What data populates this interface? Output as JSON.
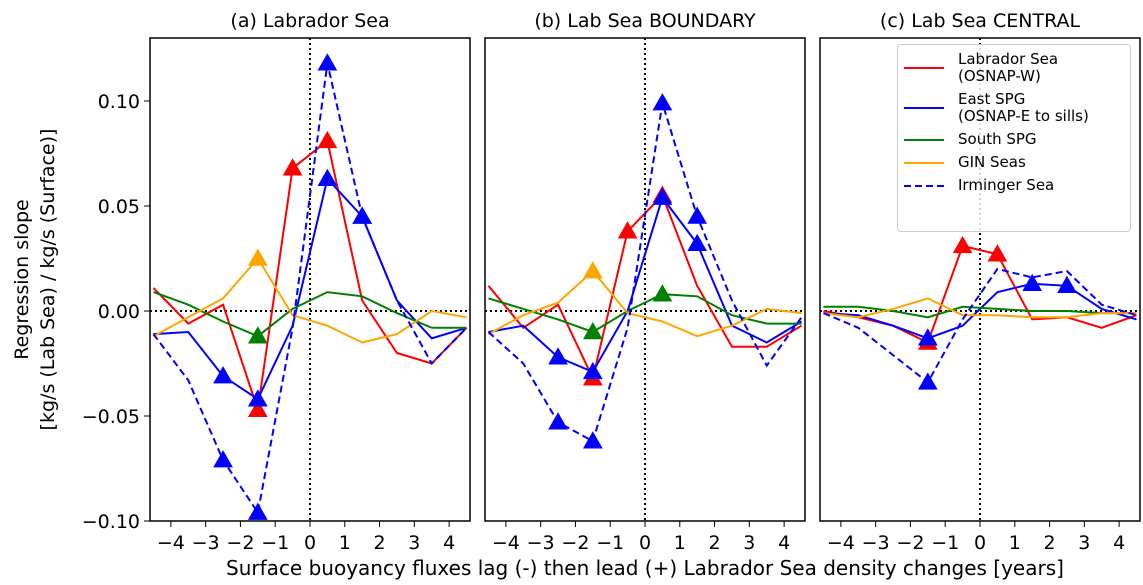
{
  "chart_data": [
    {
      "type": "line",
      "title": "(a) Labrador Sea",
      "ylabel": [
        "Regression slope",
        "[kg/s (Lab Sea) / kg/s (Surface)]"
      ],
      "x": [
        -4.5,
        -3.5,
        -2.5,
        -1.5,
        -0.5,
        0.5,
        1.5,
        2.5,
        3.5,
        4.5
      ],
      "xlim": [
        -4.6,
        4.6
      ],
      "ylim": [
        -0.1,
        0.13
      ],
      "xticks": [
        {
          "value": -4,
          "label": "−4"
        },
        {
          "value": -3,
          "label": "−3"
        },
        {
          "value": -2,
          "label": "−2"
        },
        {
          "value": -1,
          "label": "−1"
        },
        0,
        1,
        2,
        3,
        4
      ],
      "yticks": [
        {
          "value": -0.1,
          "label": "−0.10"
        },
        {
          "value": -0.05,
          "label": "−0.05"
        },
        {
          "value": 0,
          "label": "0.00"
        },
        {
          "value": 0.05,
          "label": "0.05"
        },
        {
          "value": 0.1,
          "label": "0.10"
        }
      ],
      "zero_lines": true,
      "series": [
        {
          "name": "Labrador Sea\n(OSNAP-W)",
          "color": "#ff0000",
          "dashed": false,
          "values": [
            0.011,
            -0.006,
            0.003,
            -0.047,
            0.068,
            0.081,
            0.005,
            -0.02,
            -0.025,
            -0.008
          ],
          "markers": [
            3,
            4,
            5
          ]
        },
        {
          "name": "East SPG\n(OSNAP-E to sills)",
          "color": "#0000ff",
          "dashed": false,
          "values": [
            -0.011,
            -0.01,
            -0.031,
            -0.042,
            -0.007,
            0.063,
            0.045,
            0.005,
            -0.013,
            -0.008
          ],
          "markers": [
            2,
            3,
            5,
            6
          ]
        },
        {
          "name": "South SPG",
          "color": "#008000",
          "dashed": false,
          "values": [
            0.009,
            0.003,
            -0.005,
            -0.012,
            0.001,
            0.009,
            0.007,
            -0.001,
            -0.008,
            -0.008
          ],
          "markers": [
            3
          ]
        },
        {
          "name": "GIN Seas",
          "color": "#ffa500",
          "dashed": false,
          "values": [
            -0.012,
            -0.003,
            0.006,
            0.025,
            -0.002,
            -0.007,
            -0.015,
            -0.011,
            0.0,
            -0.003
          ],
          "markers": [
            3
          ]
        },
        {
          "name": "Irminger Sea",
          "color": "#0000ff",
          "dashed": true,
          "values": [
            -0.011,
            -0.033,
            -0.071,
            -0.096,
            -0.008,
            0.118,
            0.045,
            0.005,
            -0.025,
            -0.008
          ],
          "markers": [
            2,
            3,
            5,
            6
          ]
        }
      ]
    },
    {
      "type": "line",
      "title": "(b) Lab Sea BOUNDARY",
      "xlabel": "Surface buoyancy fluxes lag (-) then lead (+) Labrador Sea density changes [years]",
      "x": [
        -4.5,
        -3.5,
        -2.5,
        -1.5,
        -0.5,
        0.5,
        1.5,
        2.5,
        3.5,
        4.5
      ],
      "xlim": [
        -4.6,
        4.6
      ],
      "ylim": [
        -0.1,
        0.13
      ],
      "xticks": [
        {
          "value": -4,
          "label": "−4"
        },
        {
          "value": -3,
          "label": "−3"
        },
        {
          "value": -2,
          "label": "−2"
        },
        {
          "value": -1,
          "label": "−1"
        },
        0,
        1,
        2,
        3,
        4
      ],
      "zero_lines": true,
      "series": [
        {
          "name": "Labrador Sea\n(OSNAP-W)",
          "color": "#ff0000",
          "dashed": false,
          "values": [
            0.012,
            -0.008,
            0.003,
            -0.032,
            0.038,
            0.055,
            0.012,
            -0.017,
            -0.017,
            -0.007
          ],
          "markers": [
            3,
            4,
            5
          ]
        },
        {
          "name": "East SPG\n(OSNAP-E to sills)",
          "color": "#0000ff",
          "dashed": false,
          "values": [
            -0.01,
            -0.007,
            -0.022,
            -0.029,
            0.0,
            0.054,
            0.032,
            -0.007,
            -0.015,
            -0.005
          ],
          "markers": [
            2,
            3,
            5,
            6
          ]
        },
        {
          "name": "South SPG",
          "color": "#008000",
          "dashed": false,
          "values": [
            0.006,
            0.001,
            -0.004,
            -0.01,
            0.0,
            0.008,
            0.007,
            -0.002,
            -0.006,
            -0.006
          ],
          "markers": [
            3,
            5
          ]
        },
        {
          "name": "GIN Seas",
          "color": "#ffa500",
          "dashed": false,
          "values": [
            -0.011,
            -0.002,
            0.004,
            0.019,
            -0.001,
            -0.005,
            -0.012,
            -0.007,
            0.001,
            -0.001
          ],
          "markers": [
            3
          ]
        },
        {
          "name": "Irminger Sea",
          "color": "#0000ff",
          "dashed": true,
          "values": [
            -0.01,
            -0.025,
            -0.053,
            -0.062,
            -0.008,
            0.099,
            0.045,
            0.005,
            -0.026,
            -0.003
          ],
          "markers": [
            2,
            3,
            5,
            6
          ]
        }
      ]
    },
    {
      "type": "line",
      "title": "(c) Lab Sea CENTRAL",
      "x": [
        -4.5,
        -3.5,
        -2.5,
        -1.5,
        -0.5,
        0.5,
        1.5,
        2.5,
        3.5,
        4.5
      ],
      "xlim": [
        -4.6,
        4.6
      ],
      "ylim": [
        -0.1,
        0.13
      ],
      "xticks": [
        {
          "value": -4,
          "label": "−4"
        },
        {
          "value": -3,
          "label": "−3"
        },
        {
          "value": -2,
          "label": "−2"
        },
        {
          "value": -1,
          "label": "−1"
        },
        0,
        1,
        2,
        3,
        4
      ],
      "zero_lines": true,
      "legend": "upper right",
      "series": [
        {
          "name": "Labrador Sea\n(OSNAP-W)",
          "color": "#ff0000",
          "dashed": false,
          "values": [
            0.0,
            -0.003,
            -0.007,
            -0.015,
            0.031,
            0.027,
            -0.004,
            -0.003,
            -0.008,
            -0.002
          ],
          "markers": [
            3,
            4,
            5
          ]
        },
        {
          "name": "East SPG\n(OSNAP-E to sills)",
          "color": "#0000ff",
          "dashed": false,
          "values": [
            -0.001,
            -0.002,
            -0.007,
            -0.013,
            -0.007,
            0.009,
            0.013,
            0.012,
            0.001,
            -0.004
          ],
          "markers": [
            3,
            6,
            7
          ]
        },
        {
          "name": "South SPG",
          "color": "#008000",
          "dashed": false,
          "values": [
            0.002,
            0.002,
            0.0,
            -0.003,
            0.002,
            0.001,
            0.0,
            0.0,
            -0.001,
            -0.001
          ],
          "markers": []
        },
        {
          "name": "GIN Seas",
          "color": "#ffa500",
          "dashed": false,
          "values": [
            -0.001,
            -0.003,
            0.001,
            0.006,
            -0.002,
            -0.002,
            -0.003,
            -0.003,
            -0.001,
            -0.001
          ],
          "markers": []
        },
        {
          "name": "Irminger Sea",
          "color": "#0000ff",
          "dashed": true,
          "values": [
            -0.001,
            -0.008,
            -0.021,
            -0.034,
            -0.004,
            0.02,
            0.016,
            0.019,
            0.003,
            -0.002
          ],
          "markers": [
            3
          ]
        }
      ]
    }
  ]
}
